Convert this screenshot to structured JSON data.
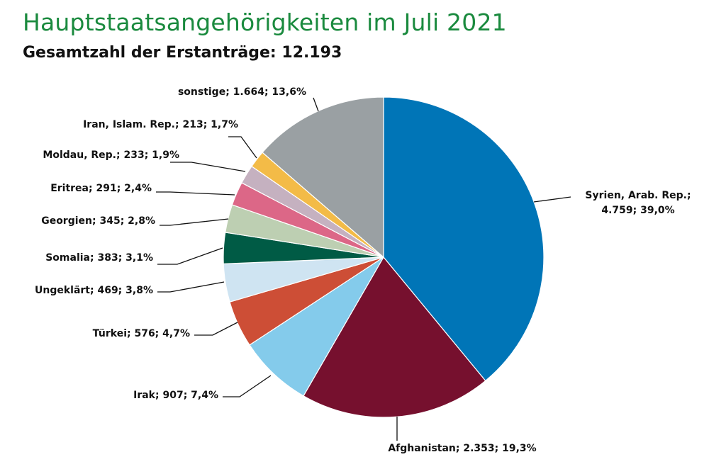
{
  "header": {
    "title": "Hauptstaatsangehörigkeiten im Juli 2021",
    "subtitle": "Gesamtzahl der Erstanträge: 12.193"
  },
  "chart_data": {
    "type": "pie",
    "title": "Hauptstaatsangehörigkeiten im Juli 2021",
    "subtitle": "Gesamtzahl der Erstanträge: 12.193",
    "total": 12193,
    "slices": [
      {
        "name": "Syrien, Arab. Rep.",
        "value": 4759,
        "percent": 39.0,
        "color": "#0075b7",
        "label_lines": [
          "Syrien, Arab. Rep.;",
          "4.759; 39,0%"
        ]
      },
      {
        "name": "Afghanistan",
        "value": 2353,
        "percent": 19.3,
        "color": "#76102e",
        "label_lines": [
          "Afghanistan; 2.353; 19,3%"
        ]
      },
      {
        "name": "Irak",
        "value": 907,
        "percent": 7.4,
        "color": "#84cbeb",
        "label_lines": [
          "Irak; 907; 7,4%"
        ]
      },
      {
        "name": "Türkei",
        "value": 576,
        "percent": 4.7,
        "color": "#cd4e36",
        "label_lines": [
          "Türkei; 576; 4,7%"
        ]
      },
      {
        "name": "Ungeklärt",
        "value": 469,
        "percent": 3.8,
        "color": "#cfe4f2",
        "label_lines": [
          "Ungeklärt; 469; 3,8%"
        ]
      },
      {
        "name": "Somalia",
        "value": 383,
        "percent": 3.1,
        "color": "#005b45",
        "label_lines": [
          "Somalia; 383; 3,1%"
        ]
      },
      {
        "name": "Georgien",
        "value": 345,
        "percent": 2.8,
        "color": "#bdcfb2",
        "label_lines": [
          "Georgien; 345; 2,8%"
        ]
      },
      {
        "name": "Eritrea",
        "value": 291,
        "percent": 2.4,
        "color": "#dc6787",
        "label_lines": [
          "Eritrea; 291; 2,4%"
        ]
      },
      {
        "name": "Moldau, Rep.",
        "value": 233,
        "percent": 1.9,
        "color": "#c5b1c0",
        "label_lines": [
          "Moldau, Rep.; 233; 1,9%"
        ]
      },
      {
        "name": "Iran, Islam. Rep.",
        "value": 213,
        "percent": 1.7,
        "color": "#f3bb47",
        "label_lines": [
          "Iran, Islam. Rep.; 213; 1,7%"
        ]
      },
      {
        "name": "sonstige",
        "value": 1664,
        "percent": 13.6,
        "color": "#9aa0a3",
        "label_lines": [
          "sonstige; 1.664; 13,6%"
        ]
      }
    ]
  }
}
